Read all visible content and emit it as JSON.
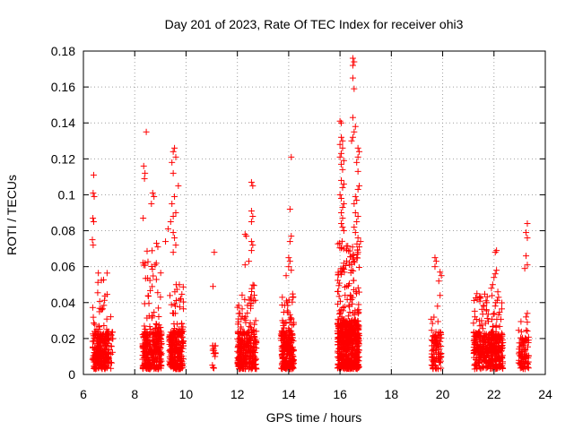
{
  "chart_data": {
    "type": "scatter",
    "title": "Day 201 of 2023, Rate Of TEC Index for receiver ohi3",
    "xlabel": "GPS time / hours",
    "ylabel": "ROTI / TECUs",
    "xlim": [
      6,
      24
    ],
    "ylim": [
      0,
      0.18
    ],
    "xticks": [
      6,
      8,
      10,
      12,
      14,
      16,
      18,
      20,
      22,
      24
    ],
    "yticks": [
      0,
      0.02,
      0.04,
      0.06,
      0.08,
      0.1,
      0.12,
      0.14,
      0.16,
      0.18
    ],
    "grid": true,
    "marker": "+",
    "color": "#ff0000",
    "clusters": [
      {
        "x_range": [
          6.35,
          7.0
        ],
        "n": 260,
        "mode": 0.012,
        "max": 0.058
      },
      {
        "x_range": [
          7.05,
          7.15
        ],
        "n": 14,
        "mode": 0.012,
        "max": 0.038
      },
      {
        "x_range": [
          8.3,
          9.05
        ],
        "n": 300,
        "mode": 0.012,
        "max": 0.07
      },
      {
        "x_range": [
          9.35,
          9.9
        ],
        "n": 280,
        "mode": 0.012,
        "max": 0.05
      },
      {
        "x_range": [
          11.0,
          11.15
        ],
        "n": 16,
        "mode": 0.01,
        "max": 0.016
      },
      {
        "x_range": [
          12.0,
          12.75
        ],
        "n": 300,
        "mode": 0.012,
        "max": 0.05
      },
      {
        "x_range": [
          13.7,
          14.2
        ],
        "n": 240,
        "mode": 0.013,
        "max": 0.045
      },
      {
        "x_range": [
          15.9,
          16.75
        ],
        "n": 650,
        "mode": 0.018,
        "max": 0.075
      },
      {
        "x_range": [
          19.55,
          19.95
        ],
        "n": 90,
        "mode": 0.012,
        "max": 0.035
      },
      {
        "x_range": [
          21.2,
          22.35
        ],
        "n": 420,
        "mode": 0.012,
        "max": 0.045
      },
      {
        "x_range": [
          22.95,
          23.35
        ],
        "n": 90,
        "mode": 0.009,
        "max": 0.03
      }
    ],
    "outliers": [
      [
        6.4,
        0.111
      ],
      [
        6.38,
        0.101
      ],
      [
        6.42,
        0.099
      ],
      [
        6.37,
        0.087
      ],
      [
        6.4,
        0.085
      ],
      [
        6.35,
        0.075
      ],
      [
        6.38,
        0.072
      ],
      [
        8.45,
        0.135
      ],
      [
        8.35,
        0.116
      ],
      [
        8.4,
        0.112
      ],
      [
        8.38,
        0.109
      ],
      [
        8.33,
        0.087
      ],
      [
        8.4,
        0.062
      ],
      [
        8.7,
        0.101
      ],
      [
        8.75,
        0.099
      ],
      [
        8.65,
        0.095
      ],
      [
        8.85,
        0.073
      ],
      [
        8.9,
        0.071
      ],
      [
        9.55,
        0.126
      ],
      [
        9.5,
        0.124
      ],
      [
        9.6,
        0.121
      ],
      [
        9.45,
        0.118
      ],
      [
        9.5,
        0.112
      ],
      [
        9.7,
        0.105
      ],
      [
        9.55,
        0.099
      ],
      [
        9.45,
        0.095
      ],
      [
        9.6,
        0.09
      ],
      [
        9.5,
        0.088
      ],
      [
        9.4,
        0.085
      ],
      [
        9.5,
        0.079
      ],
      [
        9.55,
        0.076
      ],
      [
        9.3,
        0.081
      ],
      [
        9.2,
        0.074
      ],
      [
        9.6,
        0.072
      ],
      [
        9.5,
        0.068
      ],
      [
        11.1,
        0.068
      ],
      [
        11.05,
        0.049
      ],
      [
        12.55,
        0.107
      ],
      [
        12.6,
        0.105
      ],
      [
        12.55,
        0.091
      ],
      [
        12.6,
        0.088
      ],
      [
        12.55,
        0.085
      ],
      [
        12.3,
        0.078
      ],
      [
        12.35,
        0.077
      ],
      [
        12.55,
        0.074
      ],
      [
        12.6,
        0.072
      ],
      [
        12.55,
        0.069
      ],
      [
        12.45,
        0.063
      ],
      [
        12.3,
        0.061
      ],
      [
        14.1,
        0.121
      ],
      [
        14.05,
        0.092
      ],
      [
        14.1,
        0.077
      ],
      [
        14.05,
        0.074
      ],
      [
        14.0,
        0.065
      ],
      [
        14.05,
        0.063
      ],
      [
        14.0,
        0.06
      ],
      [
        14.1,
        0.058
      ],
      [
        13.9,
        0.055
      ],
      [
        16.5,
        0.176
      ],
      [
        16.55,
        0.174
      ],
      [
        16.5,
        0.172
      ],
      [
        16.5,
        0.165
      ],
      [
        16.55,
        0.159
      ],
      [
        16.5,
        0.143
      ],
      [
        16.0,
        0.141
      ],
      [
        16.05,
        0.14
      ],
      [
        16.05,
        0.132
      ],
      [
        16.1,
        0.13
      ],
      [
        16.0,
        0.128
      ],
      [
        16.1,
        0.126
      ],
      [
        16.05,
        0.123
      ],
      [
        16.0,
        0.121
      ],
      [
        16.15,
        0.119
      ],
      [
        16.05,
        0.117
      ],
      [
        16.6,
        0.138
      ],
      [
        16.55,
        0.135
      ],
      [
        16.5,
        0.132
      ],
      [
        16.45,
        0.13
      ],
      [
        16.7,
        0.126
      ],
      [
        16.75,
        0.124
      ],
      [
        16.7,
        0.121
      ],
      [
        16.65,
        0.118
      ],
      [
        16.7,
        0.113
      ],
      [
        16.75,
        0.105
      ],
      [
        16.7,
        0.103
      ],
      [
        16.1,
        0.114
      ],
      [
        16.05,
        0.108
      ],
      [
        16.15,
        0.106
      ],
      [
        16.1,
        0.104
      ],
      [
        16.0,
        0.1
      ],
      [
        16.05,
        0.098
      ],
      [
        16.15,
        0.095
      ],
      [
        16.1,
        0.093
      ],
      [
        16.05,
        0.09
      ],
      [
        16.1,
        0.087
      ],
      [
        16.05,
        0.084
      ],
      [
        16.1,
        0.082
      ],
      [
        16.15,
        0.08
      ],
      [
        16.6,
        0.099
      ],
      [
        16.65,
        0.097
      ],
      [
        16.55,
        0.095
      ],
      [
        16.6,
        0.09
      ],
      [
        16.7,
        0.088
      ],
      [
        16.65,
        0.085
      ],
      [
        16.55,
        0.082
      ],
      [
        16.6,
        0.079
      ],
      [
        16.7,
        0.076
      ],
      [
        16.8,
        0.074
      ],
      [
        16.75,
        0.071
      ],
      [
        16.7,
        0.068
      ],
      [
        16.65,
        0.065
      ],
      [
        19.7,
        0.065
      ],
      [
        19.75,
        0.063
      ],
      [
        19.7,
        0.06
      ],
      [
        19.9,
        0.057
      ],
      [
        19.95,
        0.055
      ],
      [
        19.85,
        0.052
      ],
      [
        19.9,
        0.044
      ],
      [
        19.8,
        0.038
      ],
      [
        22.1,
        0.069
      ],
      [
        22.05,
        0.068
      ],
      [
        22.1,
        0.058
      ],
      [
        22.05,
        0.056
      ],
      [
        22.0,
        0.054
      ],
      [
        21.95,
        0.05
      ],
      [
        21.9,
        0.048
      ],
      [
        22.15,
        0.046
      ],
      [
        23.3,
        0.084
      ],
      [
        23.25,
        0.079
      ],
      [
        23.3,
        0.076
      ],
      [
        23.25,
        0.066
      ],
      [
        23.3,
        0.061
      ],
      [
        23.2,
        0.059
      ],
      [
        23.3,
        0.034
      ],
      [
        23.25,
        0.032
      ]
    ]
  }
}
